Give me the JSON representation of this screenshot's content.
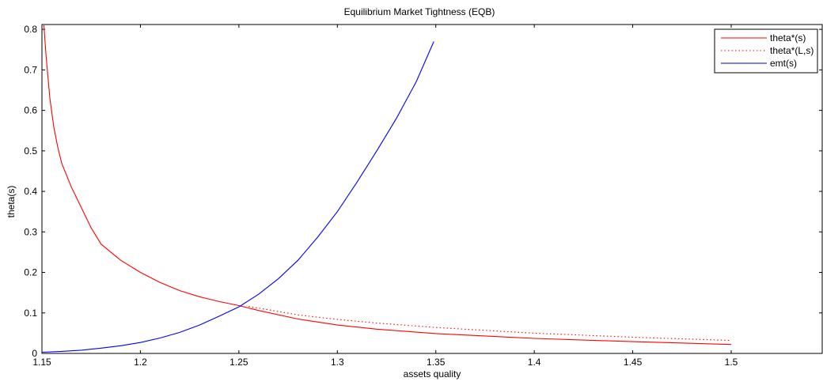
{
  "chart_data": {
    "type": "line",
    "title": "Equilibrium Market Tightness (EQB)",
    "xlabel": "assets quality",
    "ylabel": "theta(s)",
    "xlim": [
      1.15,
      1.545
    ],
    "ylim": [
      0,
      0.81
    ],
    "x_ticks": [
      1.15,
      1.2,
      1.25,
      1.3,
      1.35,
      1.4,
      1.45,
      1.5
    ],
    "x_tick_labels": [
      "1.15",
      "1.2",
      "1.25",
      "1.3",
      "1.35",
      "1.4",
      "1.45",
      "1.5"
    ],
    "y_ticks": [
      0,
      0.1,
      0.2,
      0.3,
      0.4,
      0.5,
      0.6,
      0.7,
      0.8
    ],
    "y_tick_labels": [
      "0",
      "0.1",
      "0.2",
      "0.3",
      "0.4",
      "0.5",
      "0.6",
      "0.7",
      "0.8"
    ],
    "grid": false,
    "legend_position": "top-right",
    "series": [
      {
        "name": "theta*(s)",
        "color": "#ff0000",
        "style": "solid",
        "points": [
          [
            1.151,
            0.81
          ],
          [
            1.152,
            0.74
          ],
          [
            1.154,
            0.63
          ],
          [
            1.156,
            0.56
          ],
          [
            1.158,
            0.51
          ],
          [
            1.16,
            0.47
          ],
          [
            1.165,
            0.41
          ],
          [
            1.17,
            0.36
          ],
          [
            1.175,
            0.31
          ],
          [
            1.18,
            0.27
          ],
          [
            1.19,
            0.23
          ],
          [
            1.2,
            0.2
          ],
          [
            1.21,
            0.175
          ],
          [
            1.22,
            0.155
          ],
          [
            1.23,
            0.14
          ],
          [
            1.24,
            0.128
          ],
          [
            1.25,
            0.118
          ],
          [
            1.26,
            0.106
          ],
          [
            1.28,
            0.085
          ],
          [
            1.3,
            0.07
          ],
          [
            1.32,
            0.06
          ],
          [
            1.35,
            0.049
          ],
          [
            1.4,
            0.037
          ],
          [
            1.45,
            0.029
          ],
          [
            1.5,
            0.022
          ]
        ]
      },
      {
        "name": "theta*(L,s)",
        "color": "#ff0000",
        "style": "dotted",
        "points": [
          [
            1.255,
            0.116
          ],
          [
            1.26,
            0.112
          ],
          [
            1.28,
            0.095
          ],
          [
            1.3,
            0.084
          ],
          [
            1.32,
            0.075
          ],
          [
            1.35,
            0.064
          ],
          [
            1.4,
            0.05
          ],
          [
            1.45,
            0.04
          ],
          [
            1.5,
            0.032
          ]
        ]
      },
      {
        "name": "emt(s)",
        "color": "#0000ff",
        "style": "solid",
        "points": [
          [
            1.15,
            0.003
          ],
          [
            1.16,
            0.005
          ],
          [
            1.17,
            0.008
          ],
          [
            1.18,
            0.013
          ],
          [
            1.19,
            0.019
          ],
          [
            1.2,
            0.027
          ],
          [
            1.21,
            0.038
          ],
          [
            1.22,
            0.052
          ],
          [
            1.23,
            0.07
          ],
          [
            1.24,
            0.092
          ],
          [
            1.25,
            0.115
          ],
          [
            1.26,
            0.146
          ],
          [
            1.27,
            0.184
          ],
          [
            1.28,
            0.23
          ],
          [
            1.29,
            0.287
          ],
          [
            1.3,
            0.35
          ],
          [
            1.31,
            0.423
          ],
          [
            1.32,
            0.5
          ],
          [
            1.33,
            0.58
          ],
          [
            1.34,
            0.67
          ],
          [
            1.349,
            0.77
          ]
        ]
      }
    ]
  }
}
